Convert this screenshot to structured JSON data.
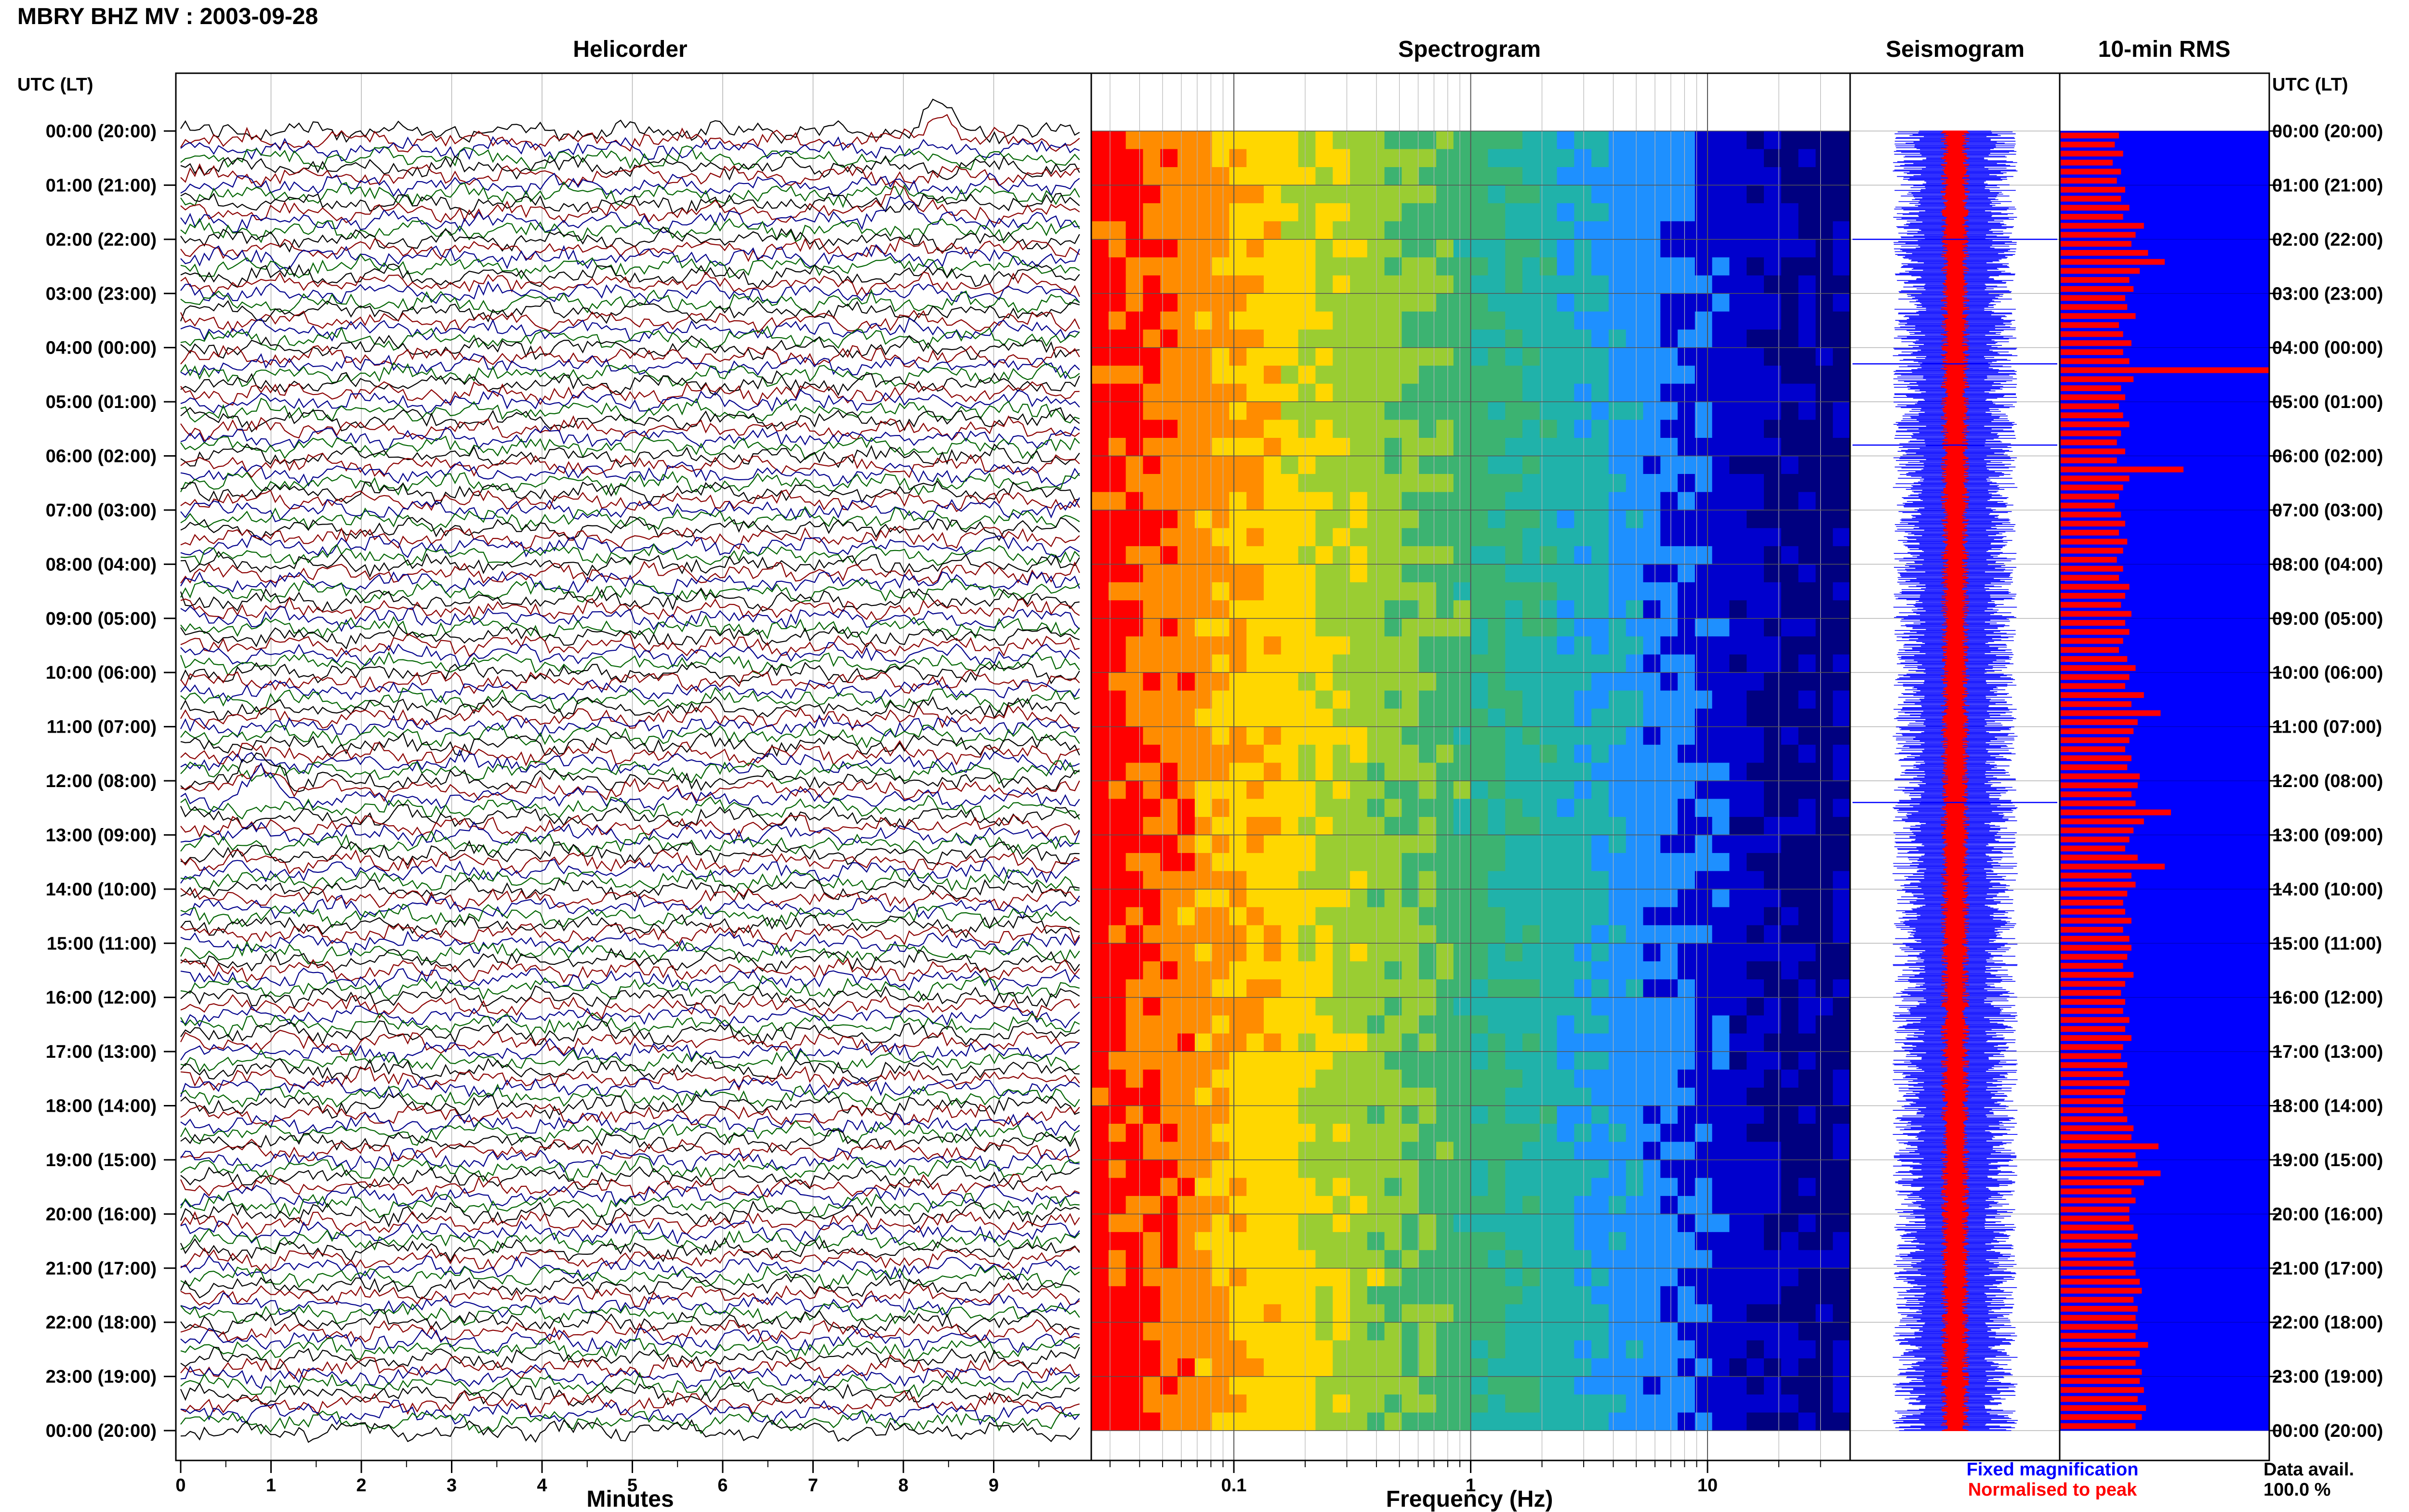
{
  "title": "MBRY BHZ MV : 2003-09-28",
  "time_axis": {
    "header_left": "UTC (LT)",
    "header_right": "UTC (LT)",
    "rows": [
      "00:00 (20:00)",
      "01:00 (21:00)",
      "02:00 (22:00)",
      "03:00 (23:00)",
      "04:00 (00:00)",
      "05:00 (01:00)",
      "06:00 (02:00)",
      "07:00 (03:00)",
      "08:00 (04:00)",
      "09:00 (05:00)",
      "10:00 (06:00)",
      "11:00 (07:00)",
      "12:00 (08:00)",
      "13:00 (09:00)",
      "14:00 (10:00)",
      "15:00 (11:00)",
      "16:00 (12:00)",
      "17:00 (13:00)",
      "18:00 (14:00)",
      "19:00 (15:00)",
      "20:00 (16:00)",
      "21:00 (17:00)",
      "22:00 (18:00)",
      "23:00 (19:00)",
      "00:00 (20:00)"
    ]
  },
  "legend": {
    "fixed": "Fixed magnification",
    "normalised": "Normalised to peak",
    "fixed_color": "#0000ff",
    "normalised_color": "#ff0000"
  },
  "data_avail": {
    "label": "Data avail.",
    "value": "100.0 %"
  },
  "chart_data": [
    {
      "type": "line",
      "panel": "Helicorder",
      "title": "Helicorder",
      "xlabel": "Minutes",
      "xlim": [
        0,
        10
      ],
      "xticks": [
        "0",
        "1",
        "2",
        "3",
        "4",
        "5",
        "6",
        "7",
        "8",
        "9"
      ],
      "trace_colors": [
        "#000000",
        "#8b0000",
        "#00008b",
        "#006400"
      ],
      "traces_per_hour": 6,
      "hours": 24,
      "notable_events": [
        {
          "minute": 0.9,
          "hour": 12.2,
          "color": "#006400"
        },
        {
          "minute": 8.4,
          "hour": 0.0,
          "color": "#8b0000"
        },
        {
          "minute": 7.9,
          "hour": 1.6,
          "color": "#000000"
        }
      ]
    },
    {
      "type": "heatmap",
      "panel": "Spectrogram",
      "title": "Spectrogram",
      "xlabel": "Frequency (Hz)",
      "xscale": "log",
      "xlim": [
        0.025,
        40
      ],
      "xticks": [
        "0.1",
        "1",
        "10"
      ],
      "colormap": [
        "#ff0000",
        "#ff8c00",
        "#ffd700",
        "#9acd32",
        "#3cb371",
        "#20b2aa",
        "#1e90ff",
        "#0000cd",
        "#000080"
      ],
      "energy_falloff": "high at low frequency, decreasing toward 40 Hz"
    },
    {
      "type": "line",
      "panel": "Seismogram",
      "title": "Seismogram",
      "series": [
        {
          "name": "Fixed magnification",
          "color": "#0000ff"
        },
        {
          "name": "Normalised to peak",
          "color": "#ff0000"
        }
      ],
      "spikes_hour": [
        2.0,
        4.3,
        5.8,
        12.4
      ]
    },
    {
      "type": "bar",
      "panel": "10-min RMS",
      "title": "10-min RMS",
      "orientation": "horizontal",
      "intervals_per_hour": 6,
      "values": [
        0.28,
        0.26,
        0.3,
        0.25,
        0.29,
        0.27,
        0.31,
        0.29,
        0.33,
        0.3,
        0.4,
        0.36,
        0.34,
        0.42,
        0.5,
        0.38,
        0.33,
        0.35,
        0.31,
        0.32,
        0.36,
        0.28,
        0.3,
        0.34,
        0.3,
        0.33,
        1.0,
        0.35,
        0.29,
        0.31,
        0.28,
        0.3,
        0.33,
        0.29,
        0.27,
        0.31,
        0.27,
        0.59,
        0.33,
        0.3,
        0.28,
        0.26,
        0.29,
        0.31,
        0.28,
        0.32,
        0.3,
        0.27,
        0.3,
        0.28,
        0.33,
        0.31,
        0.29,
        0.34,
        0.31,
        0.33,
        0.3,
        0.28,
        0.32,
        0.36,
        0.33,
        0.31,
        0.4,
        0.34,
        0.48,
        0.37,
        0.35,
        0.33,
        0.31,
        0.34,
        0.32,
        0.38,
        0.37,
        0.34,
        0.36,
        0.53,
        0.4,
        0.35,
        0.33,
        0.31,
        0.37,
        0.5,
        0.34,
        0.36,
        0.32,
        0.3,
        0.31,
        0.34,
        0.3,
        0.33,
        0.34,
        0.32,
        0.3,
        0.35,
        0.31,
        0.29,
        0.31,
        0.3,
        0.33,
        0.31,
        0.34,
        0.3,
        0.29,
        0.32,
        0.3,
        0.33,
        0.31,
        0.3,
        0.3,
        0.32,
        0.35,
        0.34,
        0.47,
        0.36,
        0.37,
        0.48,
        0.4,
        0.34,
        0.36,
        0.33,
        0.33,
        0.35,
        0.37,
        0.34,
        0.36,
        0.35,
        0.36,
        0.38,
        0.39,
        0.35,
        0.37,
        0.36,
        0.37,
        0.36,
        0.42,
        0.38,
        0.36,
        0.39,
        0.38,
        0.4,
        0.37,
        0.41,
        0.39,
        0.36
      ]
    }
  ],
  "colors": {
    "frame": "#000000",
    "grid": "#b4b4b4"
  }
}
